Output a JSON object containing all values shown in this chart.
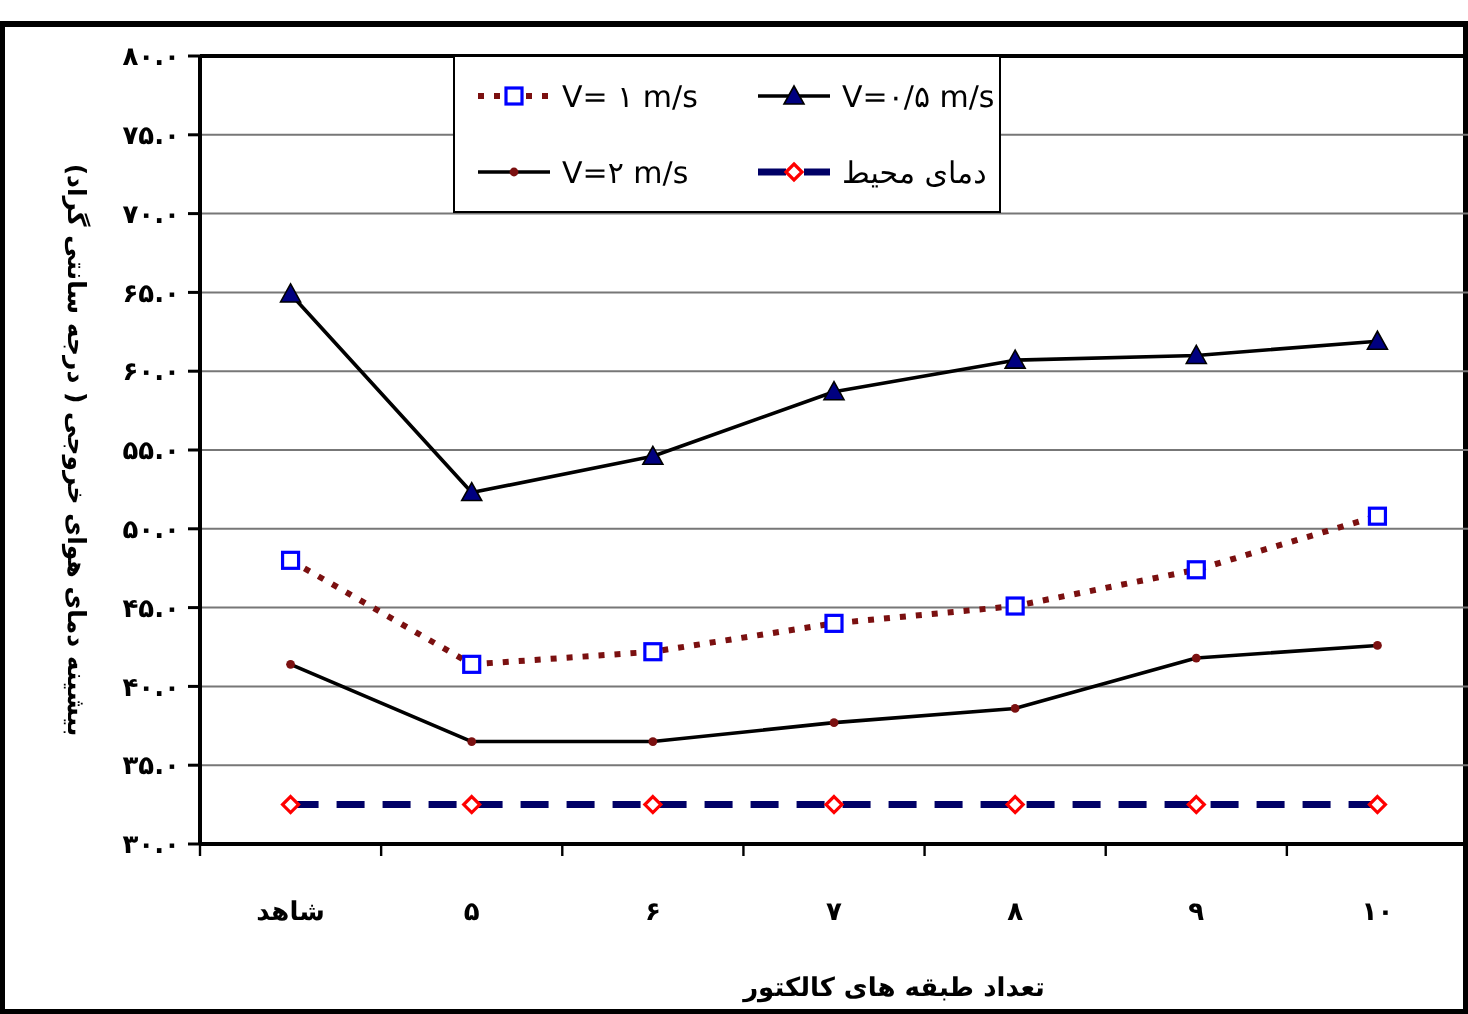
{
  "chart_data": {
    "type": "line",
    "xlabel": "تعداد طبقه های کالکتور",
    "ylabel": "بیشینه دمای هوای خروجی ( درجه سانتی گراد)",
    "categories": [
      "شاهد",
      "۵",
      "۶",
      "۷",
      "۸",
      "۹",
      "۱۰"
    ],
    "ylim": [
      30,
      80
    ],
    "yticks": [
      {
        "value": 30,
        "label": "۳۰.۰"
      },
      {
        "value": 35,
        "label": "۳۵.۰"
      },
      {
        "value": 40,
        "label": "۴۰.۰"
      },
      {
        "value": 45,
        "label": "۴۵.۰"
      },
      {
        "value": 50,
        "label": "۵۰.۰"
      },
      {
        "value": 55,
        "label": "۵۵.۰"
      },
      {
        "value": 60,
        "label": "۶۰.۰"
      },
      {
        "value": 65,
        "label": "۶۵.۰"
      },
      {
        "value": 70,
        "label": "۷۰.۰"
      },
      {
        "value": 75,
        "label": "۷۵.۰"
      },
      {
        "value": 80,
        "label": "۸۰.۰"
      }
    ],
    "grid": "y",
    "legend": "top",
    "series": [
      {
        "name": "V= ۱ m/s",
        "color": "#7b1010",
        "line_style": "dotted",
        "marker": "square",
        "values": [
          48.0,
          41.4,
          42.2,
          44.0,
          45.1,
          47.4,
          50.8
        ]
      },
      {
        "name": "V=۰/۵ m/s",
        "color": "#000000",
        "line_style": "solid",
        "marker": "triangle",
        "values": [
          64.9,
          52.3,
          54.6,
          58.7,
          60.7,
          61.0,
          61.9
        ]
      },
      {
        "name": "V=۲ m/s",
        "color": "#000000",
        "line_style": "solid",
        "marker": "circle",
        "values": [
          41.4,
          36.5,
          36.5,
          37.7,
          38.6,
          41.8,
          42.6
        ]
      },
      {
        "name": "دمای محیط",
        "color": "#000066",
        "line_style": "dashed",
        "marker": "diamond",
        "values": [
          32.5,
          32.5,
          32.5,
          32.5,
          32.5,
          32.5,
          32.5
        ]
      }
    ]
  }
}
